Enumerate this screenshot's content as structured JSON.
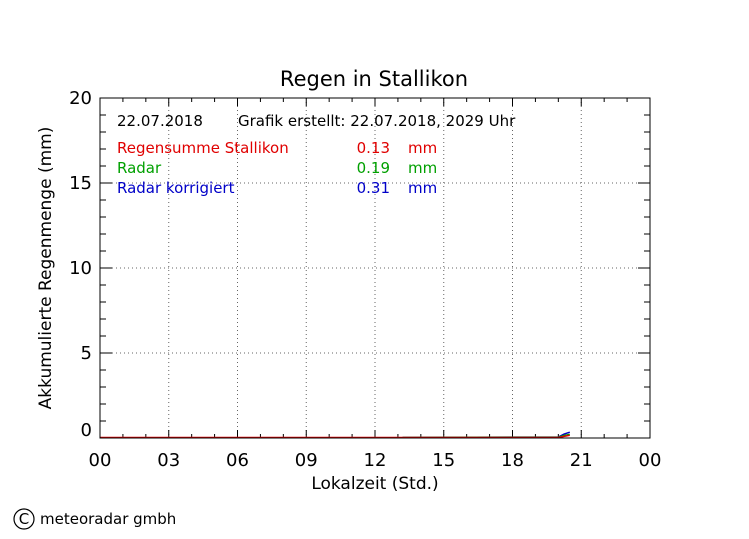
{
  "chart_data": {
    "type": "line",
    "title": "Regen in Stallikon",
    "xlabel": "Lokalzeit (Std.)",
    "ylabel": "Akkumulierte Regenmenge (mm)",
    "xlim": [
      0,
      24
    ],
    "ylim": [
      0,
      20
    ],
    "x_tick_labels": [
      "00",
      "03",
      "06",
      "09",
      "12",
      "15",
      "18",
      "21",
      "00"
    ],
    "y_tick_labels": [
      "0",
      "5",
      "10",
      "15",
      "20"
    ],
    "grid": true,
    "info": {
      "date": "22.07.2018",
      "created": "Grafik erstellt: 22.07.2018, 2029 Uhr"
    },
    "series": [
      {
        "name": "Regensumme Stallikon",
        "value": "0.13",
        "unit": "mm",
        "color": "#e00000",
        "x": [
          0,
          20.0,
          20.5,
          20.5
        ],
        "y": [
          0,
          0,
          0.13,
          0.13
        ]
      },
      {
        "name": "Radar",
        "value": "0.19",
        "unit": "mm",
        "color": "#00a000",
        "x": [
          13.2,
          20.0,
          20.25,
          20.5
        ],
        "y": [
          0,
          0.02,
          0.12,
          0.19
        ]
      },
      {
        "name": "Radar korrigiert",
        "value": "0.31",
        "unit": "mm",
        "color": "#0000c8",
        "x": [
          13.2,
          20.0,
          20.25,
          20.5
        ],
        "y": [
          0,
          0.03,
          0.2,
          0.31
        ]
      }
    ]
  },
  "footer": {
    "copyright_symbol": "C",
    "company": "meteoradar gmbh"
  }
}
